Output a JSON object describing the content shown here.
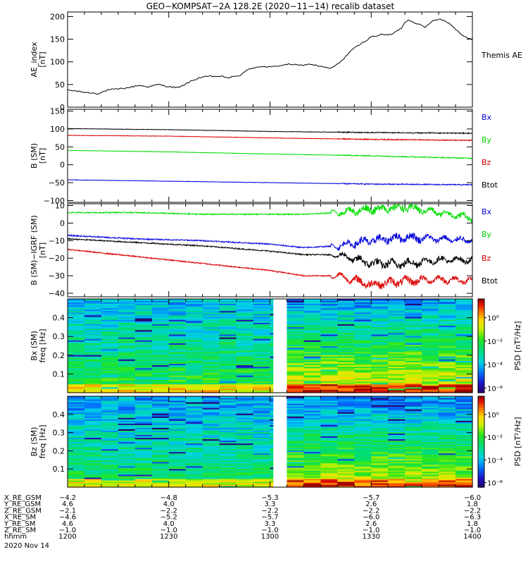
{
  "title": "GEO−KOMPSAT−2A 128.2E (2020−11−14) recalib dataset",
  "chart_data": [
    {
      "type": "line",
      "id": "ae",
      "ylabel": "AE_index",
      "yunit": "[nT]",
      "ylim": [
        0,
        210
      ],
      "yticks": [
        0,
        50,
        100,
        150,
        200
      ],
      "xlim": [
        0,
        120
      ],
      "legend": [
        "Themis AE"
      ],
      "series": [
        {
          "name": "Themis AE",
          "color": "#000000",
          "x": [
            0,
            3,
            6,
            9,
            12,
            15,
            18,
            21,
            24,
            27,
            30,
            33,
            36,
            39,
            42,
            45,
            48,
            51,
            54,
            57,
            60,
            63,
            66,
            69,
            72,
            75,
            78,
            81,
            84,
            87,
            90,
            93,
            96,
            99,
            100,
            101,
            102,
            104,
            106,
            108,
            110,
            112,
            114,
            116,
            118,
            120
          ],
          "y": [
            38,
            35,
            32,
            30,
            38,
            40,
            43,
            48,
            45,
            50,
            45,
            43,
            55,
            65,
            68,
            68,
            65,
            70,
            85,
            90,
            88,
            92,
            95,
            92,
            95,
            90,
            85,
            100,
            125,
            140,
            155,
            160,
            160,
            175,
            188,
            192,
            190,
            183,
            176,
            190,
            195,
            190,
            180,
            165,
            155,
            148
          ]
        }
      ]
    },
    {
      "type": "line",
      "id": "bsm",
      "ylabel": "B (SM)",
      "yunit": "[nT]",
      "ylim": [
        -105,
        155
      ],
      "yticks": [
        -100,
        -50,
        0,
        50,
        100,
        150
      ],
      "xlim": [
        0,
        120
      ],
      "legend": [
        "Bx",
        "By",
        "Bz",
        "Btot"
      ],
      "legend_colors": [
        "#0000cc",
        "#00cc00",
        "#cc0000",
        "#000000"
      ],
      "series": [
        {
          "name": "Btot",
          "color": "#000000",
          "x": [
            0,
            30,
            60,
            90,
            120
          ],
          "y": [
            101,
            98,
            93,
            90,
            88
          ]
        },
        {
          "name": "Bz",
          "color": "#dd0000",
          "x": [
            0,
            30,
            60,
            90,
            120
          ],
          "y": [
            82,
            80,
            75,
            71,
            68
          ]
        },
        {
          "name": "By",
          "color": "#00dd00",
          "x": [
            0,
            30,
            60,
            90,
            120
          ],
          "y": [
            40,
            36,
            30,
            25,
            18
          ]
        },
        {
          "name": "Bx",
          "color": "#0000dd",
          "x": [
            0,
            30,
            60,
            90,
            120
          ],
          "y": [
            -42,
            -46,
            -50,
            -54,
            -56
          ]
        }
      ]
    },
    {
      "type": "line",
      "id": "bigrf",
      "ylabel": "B (SM)−IGRF (SM)",
      "yunit": "[nT]",
      "ylim": [
        -42,
        11
      ],
      "yticks": [
        -40,
        -30,
        -20,
        -10,
        0,
        10
      ],
      "xlim": [
        0,
        120
      ],
      "legend": [
        "Bx",
        "By",
        "Bz",
        "Btot"
      ],
      "legend_colors": [
        "#0000cc",
        "#00cc00",
        "#cc0000",
        "#000000"
      ],
      "series": [
        {
          "name": "By",
          "color": "#00dd00",
          "x": [
            0,
            20,
            40,
            60,
            70,
            80,
            90,
            100,
            110,
            120
          ],
          "y": [
            6,
            6,
            5,
            5,
            5,
            6,
            8,
            9,
            6,
            3
          ]
        },
        {
          "name": "Bx",
          "color": "#0000dd",
          "x": [
            0,
            20,
            40,
            60,
            70,
            80,
            90,
            100,
            110,
            120
          ],
          "y": [
            -7,
            -9,
            -10,
            -12,
            -14,
            -13,
            -10,
            -8,
            -9,
            -10
          ]
        },
        {
          "name": "Btot",
          "color": "#000000",
          "x": [
            0,
            20,
            40,
            60,
            70,
            80,
            90,
            100,
            110,
            120
          ],
          "y": [
            -9,
            -11,
            -13,
            -16,
            -18,
            -18,
            -23,
            -23,
            -21,
            -21
          ]
        },
        {
          "name": "Bz",
          "color": "#dd0000",
          "x": [
            0,
            20,
            40,
            60,
            70,
            80,
            90,
            100,
            110,
            120
          ],
          "y": [
            -15,
            -19,
            -23,
            -27,
            -30,
            -30,
            -35,
            -33,
            -32,
            -33
          ]
        }
      ]
    },
    {
      "type": "heatmap",
      "id": "specbx",
      "ylabel": "Bx (SM)",
      "yunit": "freq [Hz]",
      "ylim": [
        0,
        0.5
      ],
      "yticks": [
        0.1,
        0.2,
        0.3,
        0.4
      ],
      "colorbar_label": "PSD [nT²/Hz]",
      "colorbar_ticks": [
        "10⁰",
        "10⁻²",
        "10⁻⁴",
        "10⁻⁶"
      ],
      "data_gap": [
        61,
        65
      ],
      "level_note": "Colour level 0 (low PSD, violet) to 1 (high PSD, dark red); rising toward low frequency and after 1315."
    },
    {
      "type": "heatmap",
      "id": "specbz",
      "ylabel": "Bz (SM)",
      "yunit": "freq [Hz]",
      "ylim": [
        0,
        0.5
      ],
      "yticks": [
        0.1,
        0.2,
        0.3,
        0.4
      ],
      "colorbar_label": "PSD [nT²/Hz]",
      "colorbar_ticks": [
        "10⁰",
        "10⁻²",
        "10⁻⁴",
        "10⁻⁶"
      ],
      "data_gap": [
        61,
        65
      ]
    }
  ],
  "ephemeris": {
    "rows": [
      {
        "label": "X_RE_GSM",
        "values": [
          "−4.2",
          "−4.8",
          "−5.3",
          "−5.7",
          "−6.0"
        ]
      },
      {
        "label": "Y_RE_GSM",
        "values": [
          "4.6",
          "4.0",
          "3.3",
          "2.6",
          "1.8"
        ]
      },
      {
        "label": "Z_RE_GSM",
        "values": [
          "−2.1",
          "−2.2",
          "−2.2",
          "−2.2",
          "−2.2"
        ]
      },
      {
        "label": "X_RE_SM",
        "values": [
          "−4.6",
          "−5.2",
          "−5.7",
          "−6.0",
          "−6.3"
        ]
      },
      {
        "label": "Y_RE_SM",
        "values": [
          "4.6",
          "4.0",
          "3.3",
          "2.6",
          "1.8"
        ]
      },
      {
        "label": "Z_RE_SM",
        "values": [
          "−1.0",
          "−1.0",
          "−1.0",
          "−1.0",
          "−1.0"
        ]
      },
      {
        "label": "hhmm",
        "values": [
          "1200",
          "1230",
          "1300",
          "1330",
          "1400"
        ]
      }
    ],
    "date": "2020 Nov 14"
  }
}
